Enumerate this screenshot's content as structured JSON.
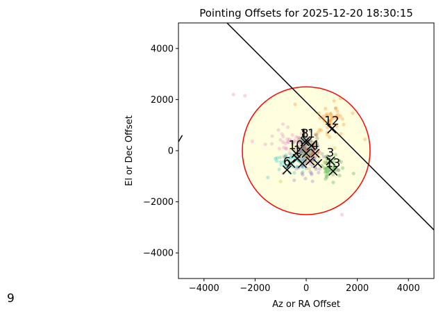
{
  "chart_data": {
    "type": "scatter",
    "title": "Pointing Offsets for 2025-12-20 18:30:15",
    "xlabel": "Az or RA Offset",
    "ylabel": "El or Dec Offset",
    "xlim": [
      -5000,
      5000
    ],
    "ylim": [
      -5000,
      5000
    ],
    "xticks": [
      -4000,
      -2000,
      0,
      2000,
      4000
    ],
    "yticks": [
      -4000,
      -2000,
      0,
      2000,
      4000
    ],
    "xtick_labels": [
      "−4000",
      "−2000",
      "0",
      "2000",
      "4000"
    ],
    "ytick_labels": [
      "−4000",
      "−2000",
      "0",
      "2000",
      "4000"
    ],
    "grid": false,
    "circle": {
      "center": [
        0,
        0
      ],
      "radius": 2500,
      "edge_color": "#ff0000",
      "fill_color": "#ffffe0"
    },
    "boundary_lines": [
      {
        "from": [
          -3100,
          5000
        ],
        "to": [
          5000,
          -3100
        ]
      },
      {
        "from": [
          -5000,
          350
        ],
        "to": [
          -4850,
          600
        ]
      }
    ],
    "series": [
      {
        "color": "#ff7f0e",
        "center": [
          1000,
          1300
        ],
        "spread": [
          350,
          350
        ],
        "n": 45,
        "seed": 11
      },
      {
        "color": "#2ca02c",
        "center": [
          950,
          -600
        ],
        "spread": [
          220,
          220
        ],
        "n": 45,
        "seed": 23
      },
      {
        "color": "#17becf",
        "center": [
          -600,
          -400
        ],
        "spread": [
          350,
          250
        ],
        "n": 45,
        "seed": 37
      },
      {
        "color": "#e377c2",
        "center": [
          -700,
          350
        ],
        "spread": [
          450,
          280
        ],
        "n": 40,
        "seed": 41
      },
      {
        "color": "#9467bd",
        "center": [
          100,
          -550
        ],
        "spread": [
          300,
          230
        ],
        "n": 35,
        "seed": 53
      },
      {
        "color": "#1f77b4",
        "center": [
          50,
          80
        ],
        "spread": [
          230,
          200
        ],
        "n": 30,
        "seed": 67
      },
      {
        "color": "#7f7f7f",
        "center": [
          -150,
          0
        ],
        "spread": [
          350,
          260
        ],
        "n": 30,
        "seed": 71
      },
      {
        "color": "#bcbd22",
        "center": [
          -50,
          -100
        ],
        "spread": [
          350,
          280
        ],
        "n": 25,
        "seed": 83
      },
      {
        "color": "#8c564b",
        "center": [
          0,
          350
        ],
        "spread": [
          250,
          200
        ],
        "n": 20,
        "seed": 97
      },
      {
        "color": "#d62728",
        "center": [
          250,
          -100
        ],
        "spread": [
          200,
          200
        ],
        "n": 15,
        "seed": 101
      }
    ],
    "outliers": [
      {
        "x": -2850,
        "y": 2200,
        "color": "#e377c2"
      },
      {
        "x": -2400,
        "y": 2150,
        "color": "#e377c2"
      },
      {
        "x": -1500,
        "y": -1050,
        "color": "#17becf"
      },
      {
        "x": 1400,
        "y": -2500,
        "color": "#e377c2"
      },
      {
        "x": -1000,
        "y": -1200,
        "color": "#bcbd22"
      }
    ],
    "markers": [
      {
        "label": "12",
        "x": 1000,
        "y": 850
      },
      {
        "label": "3",
        "x": 950,
        "y": -400
      },
      {
        "label": "13",
        "x": 1050,
        "y": -800
      },
      {
        "label": "4",
        "x": 350,
        "y": -100
      },
      {
        "label": "8",
        "x": -50,
        "y": 350
      },
      {
        "label": "11",
        "x": 50,
        "y": 350
      },
      {
        "label": "1",
        "x": -350,
        "y": -300
      },
      {
        "label": "10",
        "x": -400,
        "y": -100
      },
      {
        "label": "6",
        "x": -750,
        "y": -750
      },
      {
        "label": "",
        "x": 0,
        "y": -100
      },
      {
        "label": "",
        "x": 150,
        "y": -400
      },
      {
        "label": "",
        "x": 450,
        "y": -500
      },
      {
        "label": "",
        "x": -150,
        "y": -500
      },
      {
        "label": "",
        "x": 200,
        "y": 200
      },
      {
        "label": "",
        "x": -600,
        "y": -500
      }
    ],
    "marker_color": "#000000",
    "annotation_color": "#000000",
    "extra_label": "9"
  }
}
